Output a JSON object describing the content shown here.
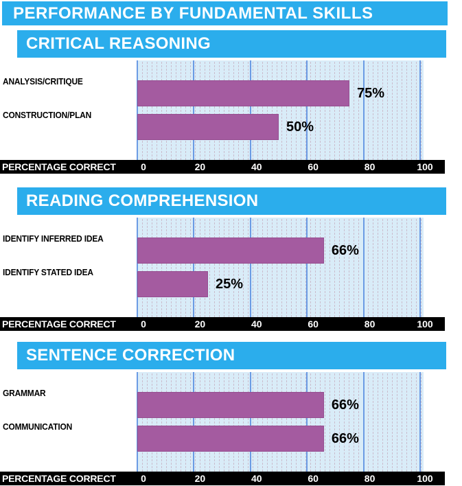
{
  "page_title": "PERFORMANCE BY FUNDAMENTAL SKILLS",
  "axis": {
    "label": "PERCENTAGE CORRECT",
    "ticks": [
      "0",
      "20",
      "40",
      "60",
      "80",
      "100"
    ]
  },
  "colors": {
    "header_blue": "#2BADEC",
    "bar_purple": "#A45BA0",
    "plot_background": "#D9ECF8",
    "gridline_blue": "#6B9BE4",
    "axis_strip_black": "#000000",
    "text_white": "#FFFFFF",
    "text_black": "#000000"
  },
  "chart_data": [
    {
      "type": "bar",
      "orientation": "horizontal",
      "title": "CRITICAL REASONING",
      "categories": [
        "ANALYSIS/CRITIQUE",
        "CONSTRUCTION/PLAN"
      ],
      "values": [
        75,
        50
      ],
      "value_labels": [
        "75%",
        "50%"
      ],
      "xlabel": "PERCENTAGE CORRECT",
      "xlim": [
        0,
        100
      ],
      "xticks": [
        0,
        20,
        40,
        60,
        80,
        100
      ],
      "grid": true,
      "legend": false
    },
    {
      "type": "bar",
      "orientation": "horizontal",
      "title": "READING COMPREHENSION",
      "categories": [
        "IDENTIFY INFERRED IDEA",
        "IDENTIFY STATED IDEA"
      ],
      "values": [
        66,
        25
      ],
      "value_labels": [
        "66%",
        "25%"
      ],
      "xlabel": "PERCENTAGE CORRECT",
      "xlim": [
        0,
        100
      ],
      "xticks": [
        0,
        20,
        40,
        60,
        80,
        100
      ],
      "grid": true,
      "legend": false
    },
    {
      "type": "bar",
      "orientation": "horizontal",
      "title": "SENTENCE CORRECTION",
      "categories": [
        "GRAMMAR",
        "COMMUNICATION"
      ],
      "values": [
        66,
        66
      ],
      "value_labels": [
        "66%",
        "66%"
      ],
      "xlabel": "PERCENTAGE CORRECT",
      "xlim": [
        0,
        100
      ],
      "xticks": [
        0,
        20,
        40,
        60,
        80,
        100
      ],
      "grid": true,
      "legend": false
    }
  ]
}
